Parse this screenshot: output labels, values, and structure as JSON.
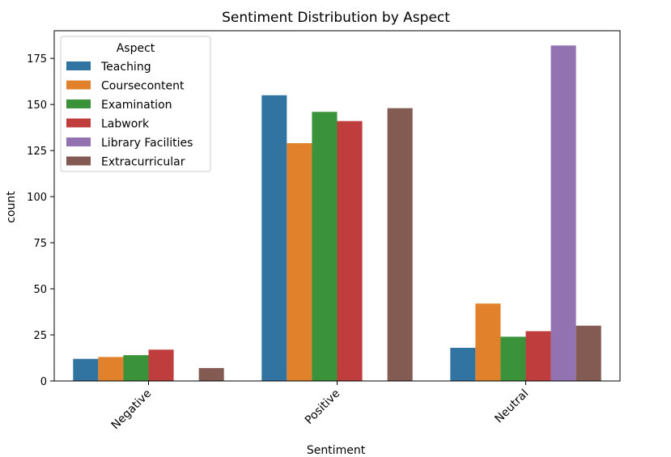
{
  "chart_data": {
    "type": "bar",
    "title": "Sentiment Distribution by Aspect",
    "xlabel": "Sentiment",
    "ylabel": "count",
    "categories": [
      "Negative",
      "Positive",
      "Neutral"
    ],
    "ylim": [
      0,
      190
    ],
    "yticks": [
      0,
      25,
      50,
      75,
      100,
      125,
      150,
      175
    ],
    "grid": false,
    "legend": {
      "title": "Aspect",
      "placement": "top-left"
    },
    "series": [
      {
        "name": "Teaching",
        "color": "#3274a1",
        "values": [
          12,
          155,
          18
        ]
      },
      {
        "name": "Coursecontent",
        "color": "#e1812c",
        "values": [
          13,
          129,
          42
        ]
      },
      {
        "name": "Examination",
        "color": "#3a923a",
        "values": [
          14,
          146,
          24
        ]
      },
      {
        "name": "Labwork",
        "color": "#c03d3e",
        "values": [
          17,
          141,
          27
        ]
      },
      {
        "name": "Library Facilities",
        "color": "#9372b2",
        "values": [
          0,
          0,
          182
        ]
      },
      {
        "name": "Extracurricular",
        "color": "#845b53",
        "values": [
          7,
          148,
          30
        ]
      }
    ]
  }
}
